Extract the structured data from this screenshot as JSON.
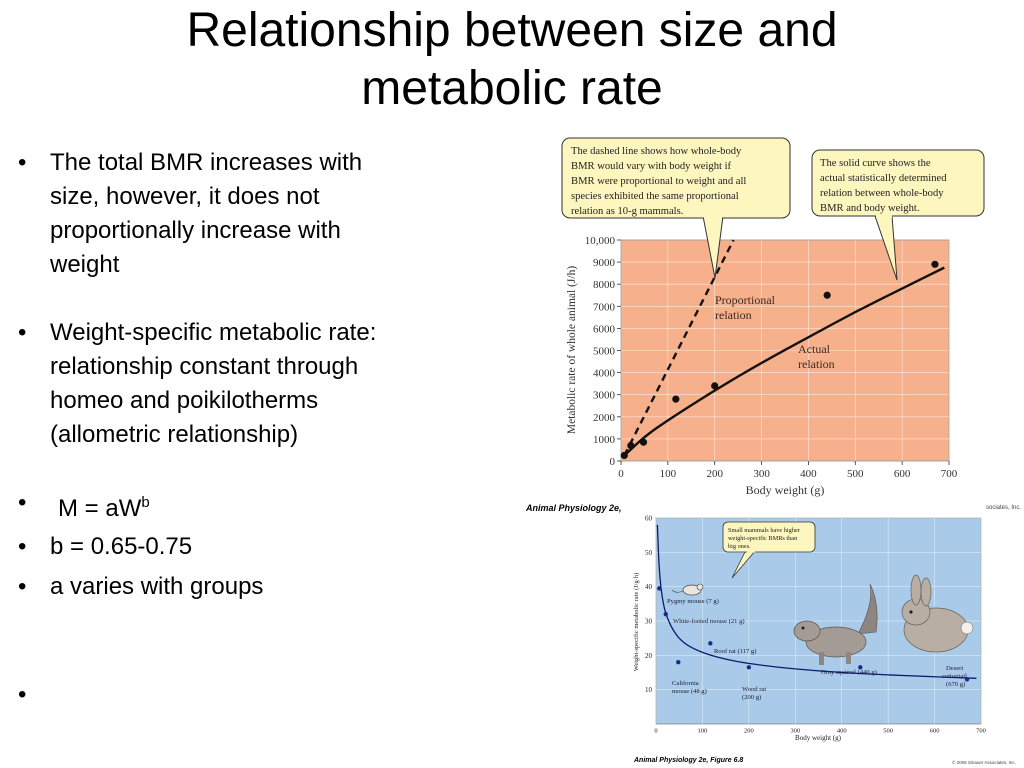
{
  "slide": {
    "title_line1": "Relationship between size and",
    "title_line2": "metabolic rate",
    "bullets": [
      {
        "text": "The total BMR increases with size, however, it does not proportionally increase with weight"
      },
      {
        "text": "Weight-specific metabolic rate: relationship constant through homeo and poikilotherms (allometric relationship)"
      },
      {
        "text_main": "M = aW",
        "sup": "b"
      },
      {
        "text": "b = 0.65-0.75"
      },
      {
        "text": "a varies with groups"
      },
      {
        "text": ""
      }
    ],
    "caption_top": "Animal Physiology 2e,",
    "caption_top_right": "sociates, Inc.",
    "caption_bottom": "Animal Physiology 2e, Figure 6.8",
    "copyright_small": "© 2008 Sinauer Associates, Inc."
  },
  "colors": {
    "panel_top_bg": "#f7b08c",
    "panel_bottom_bg": "#a9cbe9",
    "callout_bg": "#fdf6bf",
    "callout_border": "#333333",
    "curve": "#111111",
    "dots_bottom": "#1c2a8a",
    "curve_bottom": "#0e1a6e"
  },
  "chart_data": [
    {
      "type": "line",
      "xlabel": "Body weight (g)",
      "ylabel": "Metabolic rate of whole animal (J/h)",
      "xlim": [
        0,
        700
      ],
      "ylim": [
        0,
        10000
      ],
      "x_ticks": [
        0,
        100,
        200,
        300,
        400,
        500,
        600,
        700
      ],
      "y_ticks": [
        0,
        1000,
        2000,
        3000,
        4000,
        5000,
        6000,
        7000,
        8000,
        9000,
        10000
      ],
      "y_tick_labels": [
        "0",
        "1000",
        "2000",
        "3000",
        "4000",
        "5000",
        "6000",
        "7000",
        "8000",
        "9000",
        "10,000"
      ],
      "grid": true,
      "points": [
        {
          "x": 7,
          "y": 250
        },
        {
          "x": 21,
          "y": 700
        },
        {
          "x": 48,
          "y": 850
        },
        {
          "x": 117,
          "y": 2800
        },
        {
          "x": 200,
          "y": 3400
        },
        {
          "x": 440,
          "y": 7500
        },
        {
          "x": 670,
          "y": 8900
        }
      ],
      "series": [
        {
          "style": "dashed",
          "x": [
            7,
            240
          ],
          "y": [
            250,
            10000
          ]
        },
        {
          "style": "solid",
          "x": [
            7,
            50,
            100,
            200,
            300,
            400,
            500,
            600,
            690
          ],
          "y": [
            250,
            1100,
            1850,
            3200,
            4450,
            5600,
            6750,
            7800,
            8750
          ]
        }
      ],
      "annotations": [
        {
          "text_line1": "Proportional",
          "text_line2": "relation"
        },
        {
          "text_line1": "Actual",
          "text_line2": "relation"
        }
      ],
      "callouts": [
        {
          "lines": [
            "The dashed line shows how whole-body",
            "BMR would vary with body weight if",
            "BMR were proportional to weight and all",
            "species exhibited the same proportional",
            "relation as 10-g mammals."
          ]
        },
        {
          "lines": [
            "The solid curve shows the",
            "actual statistically determined",
            "relation between whole-body",
            "BMR and body weight."
          ]
        }
      ]
    },
    {
      "type": "line",
      "xlabel": "Body weight (g)",
      "ylabel": "Weight-specific metabolic rate (J/g·h)",
      "xlim": [
        0,
        700
      ],
      "ylim": [
        0,
        60
      ],
      "x_ticks": [
        0,
        100,
        200,
        300,
        400,
        500,
        600,
        700
      ],
      "y_ticks": [
        10,
        20,
        30,
        40,
        50,
        60
      ],
      "grid": true,
      "points": [
        {
          "x": 7,
          "y": 39.5,
          "label": "Pygmy mouse (7 g)"
        },
        {
          "x": 21,
          "y": 32,
          "label": "White-footed mouse (21 g)"
        },
        {
          "x": 48,
          "y": 18,
          "label_line1": "California",
          "label_line2": "mouse (48 g)"
        },
        {
          "x": 117,
          "y": 23.5,
          "label": "Roof rat (117 g)"
        },
        {
          "x": 200,
          "y": 16.5,
          "label_line1": "Wood rat",
          "label_line2": "(200 g)"
        },
        {
          "x": 440,
          "y": 16.5,
          "label": "Gray squirrel (440 g)"
        },
        {
          "x": 670,
          "y": 13,
          "label_line1": "Desert",
          "label_line2": "cottontail",
          "label_line3": "(670 g)"
        }
      ],
      "curve": {
        "x": [
          3,
          7,
          15,
          25,
          40,
          60,
          90,
          130,
          180,
          250,
          350,
          450,
          550,
          690
        ],
        "y": [
          58,
          44,
          35,
          30.5,
          26.5,
          23.5,
          21.3,
          19.5,
          18,
          16.7,
          15.4,
          14.6,
          14,
          13.3
        ]
      },
      "callout": {
        "lines": [
          "Small mammals have higher",
          "weight-specific BMRs than",
          "big ones."
        ]
      }
    }
  ]
}
